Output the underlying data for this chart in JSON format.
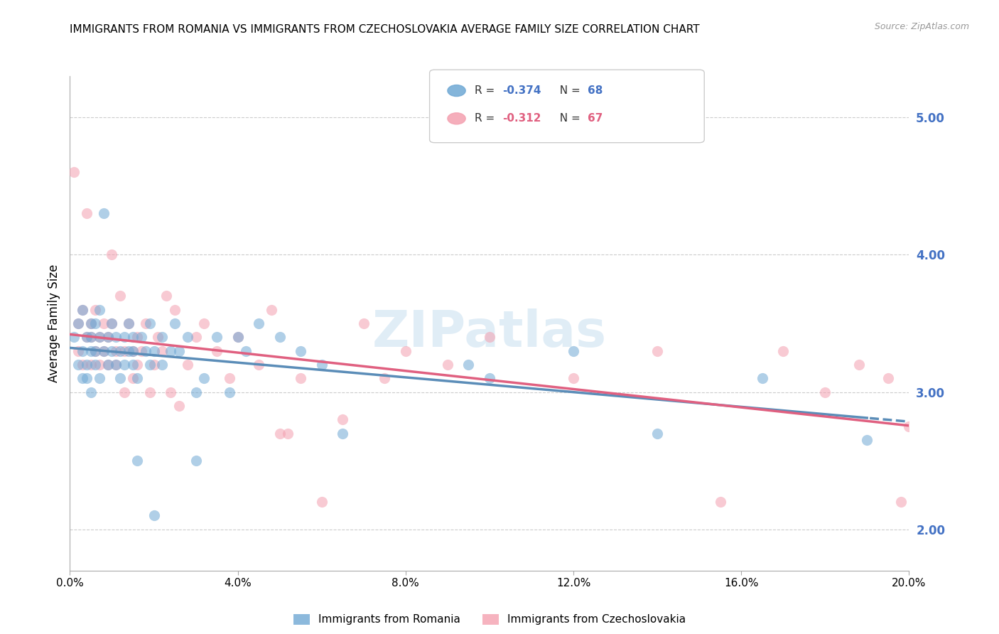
{
  "title": "IMMIGRANTS FROM ROMANIA VS IMMIGRANTS FROM CZECHOSLOVAKIA AVERAGE FAMILY SIZE CORRELATION CHART",
  "source": "Source: ZipAtlas.com",
  "ylabel": "Average Family Size",
  "right_yticks": [
    2.0,
    3.0,
    4.0,
    5.0
  ],
  "right_ytick_labels": [
    "2.00",
    "3.00",
    "4.00",
    "5.00"
  ],
  "xlim": [
    0.0,
    0.2
  ],
  "ylim": [
    1.7,
    5.3
  ],
  "romania_scatter_x": [
    0.001,
    0.002,
    0.002,
    0.003,
    0.003,
    0.003,
    0.004,
    0.004,
    0.004,
    0.005,
    0.005,
    0.005,
    0.005,
    0.006,
    0.006,
    0.006,
    0.007,
    0.007,
    0.007,
    0.008,
    0.008,
    0.009,
    0.009,
    0.01,
    0.01,
    0.011,
    0.011,
    0.012,
    0.012,
    0.013,
    0.013,
    0.014,
    0.014,
    0.015,
    0.015,
    0.015,
    0.016,
    0.016,
    0.017,
    0.018,
    0.019,
    0.019,
    0.02,
    0.02,
    0.022,
    0.022,
    0.024,
    0.025,
    0.026,
    0.028,
    0.03,
    0.03,
    0.032,
    0.035,
    0.038,
    0.04,
    0.042,
    0.045,
    0.05,
    0.055,
    0.06,
    0.065,
    0.095,
    0.1,
    0.12,
    0.14,
    0.165,
    0.19
  ],
  "romania_scatter_y": [
    3.4,
    3.2,
    3.5,
    3.3,
    3.1,
    3.6,
    3.2,
    3.4,
    3.1,
    3.5,
    3.3,
    3.4,
    3.0,
    3.2,
    3.5,
    3.3,
    3.4,
    3.1,
    3.6,
    4.3,
    3.3,
    3.2,
    3.4,
    3.5,
    3.3,
    3.4,
    3.2,
    3.3,
    3.1,
    3.4,
    3.2,
    3.3,
    3.5,
    3.4,
    3.3,
    3.2,
    3.1,
    2.5,
    3.4,
    3.3,
    3.2,
    3.5,
    3.3,
    2.1,
    3.4,
    3.2,
    3.3,
    3.5,
    3.3,
    3.4,
    3.0,
    2.5,
    3.1,
    3.4,
    3.0,
    3.4,
    3.3,
    3.5,
    3.4,
    3.3,
    3.2,
    2.7,
    3.2,
    3.1,
    3.3,
    2.7,
    3.1,
    2.65
  ],
  "czechoslovakia_scatter_x": [
    0.001,
    0.002,
    0.002,
    0.003,
    0.003,
    0.004,
    0.004,
    0.005,
    0.005,
    0.005,
    0.006,
    0.006,
    0.007,
    0.007,
    0.008,
    0.008,
    0.009,
    0.009,
    0.01,
    0.01,
    0.011,
    0.011,
    0.012,
    0.013,
    0.013,
    0.014,
    0.015,
    0.015,
    0.016,
    0.016,
    0.017,
    0.018,
    0.019,
    0.02,
    0.021,
    0.022,
    0.023,
    0.024,
    0.025,
    0.026,
    0.028,
    0.03,
    0.032,
    0.035,
    0.038,
    0.04,
    0.045,
    0.048,
    0.05,
    0.052,
    0.055,
    0.06,
    0.065,
    0.07,
    0.075,
    0.08,
    0.09,
    0.1,
    0.12,
    0.14,
    0.155,
    0.17,
    0.18,
    0.188,
    0.195,
    0.198,
    0.2
  ],
  "czechoslovakia_scatter_y": [
    4.6,
    3.5,
    3.3,
    3.6,
    3.2,
    3.4,
    4.3,
    3.2,
    3.5,
    3.4,
    3.3,
    3.6,
    3.2,
    3.4,
    3.5,
    3.3,
    3.2,
    3.4,
    3.5,
    4.0,
    3.2,
    3.3,
    3.7,
    3.0,
    3.3,
    3.5,
    3.1,
    3.3,
    3.4,
    3.2,
    3.3,
    3.5,
    3.0,
    3.2,
    3.4,
    3.3,
    3.7,
    3.0,
    3.6,
    2.9,
    3.2,
    3.4,
    3.5,
    3.3,
    3.1,
    3.4,
    3.2,
    3.6,
    2.7,
    2.7,
    3.1,
    2.2,
    2.8,
    3.5,
    3.1,
    3.3,
    3.2,
    3.4,
    3.1,
    3.3,
    2.2,
    3.3,
    3.0,
    3.2,
    3.1,
    2.2,
    2.75
  ],
  "romania_color": "#6fa8d4",
  "czechoslovakia_color": "#f4a0b0",
  "romania_line_color": "#5b8db8",
  "czechoslovakia_line_color": "#e06080",
  "scatter_alpha": 0.55,
  "scatter_size": 120,
  "watermark": "ZIPatlas",
  "grid_color": "#cccccc",
  "background_color": "#ffffff",
  "right_axis_color": "#4472c4",
  "bottom_tick_positions": [
    0.0,
    0.04,
    0.08,
    0.12,
    0.16,
    0.2
  ],
  "legend_romania_r": "R = ",
  "legend_romania_r_val": "-0.374",
  "legend_romania_n": "  N = ",
  "legend_romania_n_val": "68",
  "legend_czech_r": "R = ",
  "legend_czech_r_val": "-0.312",
  "legend_czech_n": "  N = ",
  "legend_czech_n_val": "67",
  "bottom_legend_romania": "Immigrants from Romania",
  "bottom_legend_czech": "Immigrants from Czechoslovakia"
}
